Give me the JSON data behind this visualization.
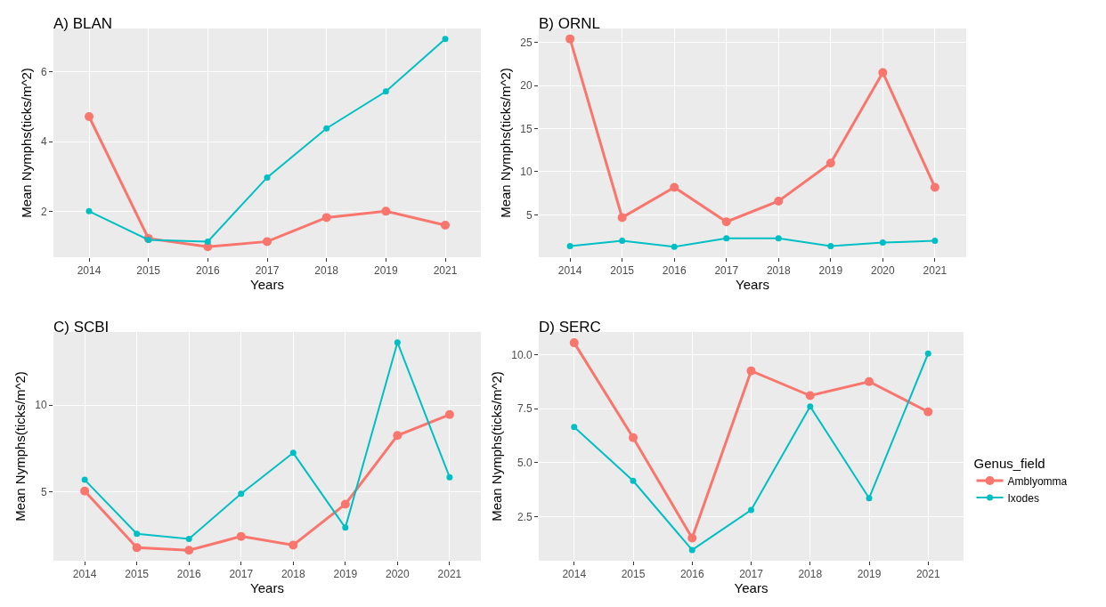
{
  "chart_data": [
    {
      "type": "line",
      "title": "A) BLAN",
      "xlabel": "Years",
      "ylabel": "Mean Nymphs(ticks/m^2)",
      "categories": [
        "2014",
        "2015",
        "2016",
        "2017",
        "2018",
        "2019",
        "2021"
      ],
      "ylim": [
        0.68,
        7.25
      ],
      "yticks": [
        2,
        4,
        6
      ],
      "grid": true,
      "legend": false,
      "marker": "circle",
      "line_style": "solid",
      "series": [
        {
          "color": "#f8766d",
          "values": [
            4.72,
            1.22,
            0.98,
            1.13,
            1.82,
            2.0,
            1.6
          ]
        },
        {
          "color": "#00bfc4",
          "values": [
            2.0,
            1.18,
            1.13,
            2.97,
            4.38,
            5.44,
            6.95
          ]
        }
      ]
    },
    {
      "type": "line",
      "title": "B) ORNL",
      "xlabel": "Years",
      "ylabel": "Mean Nymphs(ticks/m^2)",
      "categories": [
        "2014",
        "2015",
        "2016",
        "2017",
        "2018",
        "2019",
        "2020",
        "2021"
      ],
      "ylim": [
        0.1,
        26.6
      ],
      "yticks": [
        5,
        10,
        15,
        20,
        25
      ],
      "grid": true,
      "legend": false,
      "marker": "circle",
      "line_style": "solid",
      "series": [
        {
          "color": "#f8766d",
          "values": [
            25.4,
            4.7,
            8.2,
            4.2,
            6.6,
            11.0,
            21.5,
            8.2
          ]
        },
        {
          "color": "#00bfc4",
          "values": [
            1.4,
            2.0,
            1.3,
            2.3,
            2.3,
            1.4,
            1.8,
            2.0
          ]
        }
      ]
    },
    {
      "type": "line",
      "title": "C) SCBI",
      "xlabel": "Years",
      "ylabel": "Mean Nymphs(ticks/m^2)",
      "categories": [
        "2014",
        "2015",
        "2016",
        "2017",
        "2018",
        "2019",
        "2020",
        "2021"
      ],
      "ylim": [
        1.05,
        14.2
      ],
      "yticks": [
        5,
        10
      ],
      "grid": true,
      "legend": false,
      "marker": "circle",
      "line_style": "solid",
      "series": [
        {
          "color": "#f8766d",
          "values": [
            5.05,
            1.8,
            1.65,
            2.45,
            1.95,
            4.3,
            8.25,
            9.45
          ]
        },
        {
          "color": "#00bfc4",
          "values": [
            5.7,
            2.6,
            2.3,
            4.9,
            7.25,
            2.95,
            13.6,
            5.85
          ]
        }
      ]
    },
    {
      "type": "line",
      "title": "D) SERC",
      "xlabel": "Years",
      "ylabel": "Mean Nymphs(ticks/m^2)",
      "legend_title": "Genus_field",
      "categories": [
        "2014",
        "2015",
        "2016",
        "2017",
        "2018",
        "2019",
        "2021"
      ],
      "ylim": [
        0.45,
        11.05
      ],
      "yticks": [
        {
          "value": 2.5,
          "label": "2.5"
        },
        {
          "value": 5,
          "label": "5.0"
        },
        {
          "value": 7.5,
          "label": "7.5"
        },
        {
          "value": 10,
          "label": "10.0"
        }
      ],
      "grid": true,
      "legend": "right",
      "marker": "circle",
      "line_style": "solid",
      "series": [
        {
          "name": "Amblyomma",
          "color": "#f8766d",
          "values": [
            10.55,
            6.15,
            1.5,
            9.25,
            8.1,
            8.75,
            7.35
          ]
        },
        {
          "name": "Ixodes",
          "color": "#00bfc4",
          "values": [
            6.65,
            4.15,
            0.95,
            2.8,
            7.6,
            3.35,
            10.05
          ]
        }
      ]
    }
  ]
}
